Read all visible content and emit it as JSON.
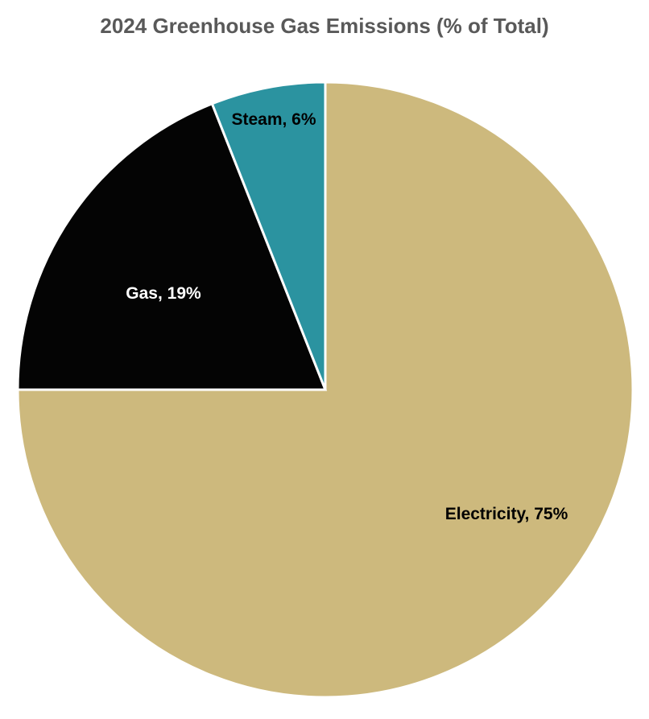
{
  "chart_data": {
    "type": "pie",
    "title": "2024 Greenhouse Gas Emissions (% of Total)",
    "title_color": "#595959",
    "categories": [
      "Electricity",
      "Gas",
      "Steam"
    ],
    "values": [
      75,
      19,
      6
    ],
    "unit": "%",
    "colors": [
      "#CDB97D",
      "#040404",
      "#2B93A0"
    ],
    "start_angle_deg": 0,
    "direction": "clockwise",
    "legend_position": "none",
    "slice_border_color": "#FFFFFF",
    "labels": [
      {
        "text": "Electricity, 75%",
        "color": "#000000"
      },
      {
        "text": "Gas, 19%",
        "color": "#FFFFFF"
      },
      {
        "text": "Steam, 6%",
        "color": "#000000"
      }
    ]
  }
}
